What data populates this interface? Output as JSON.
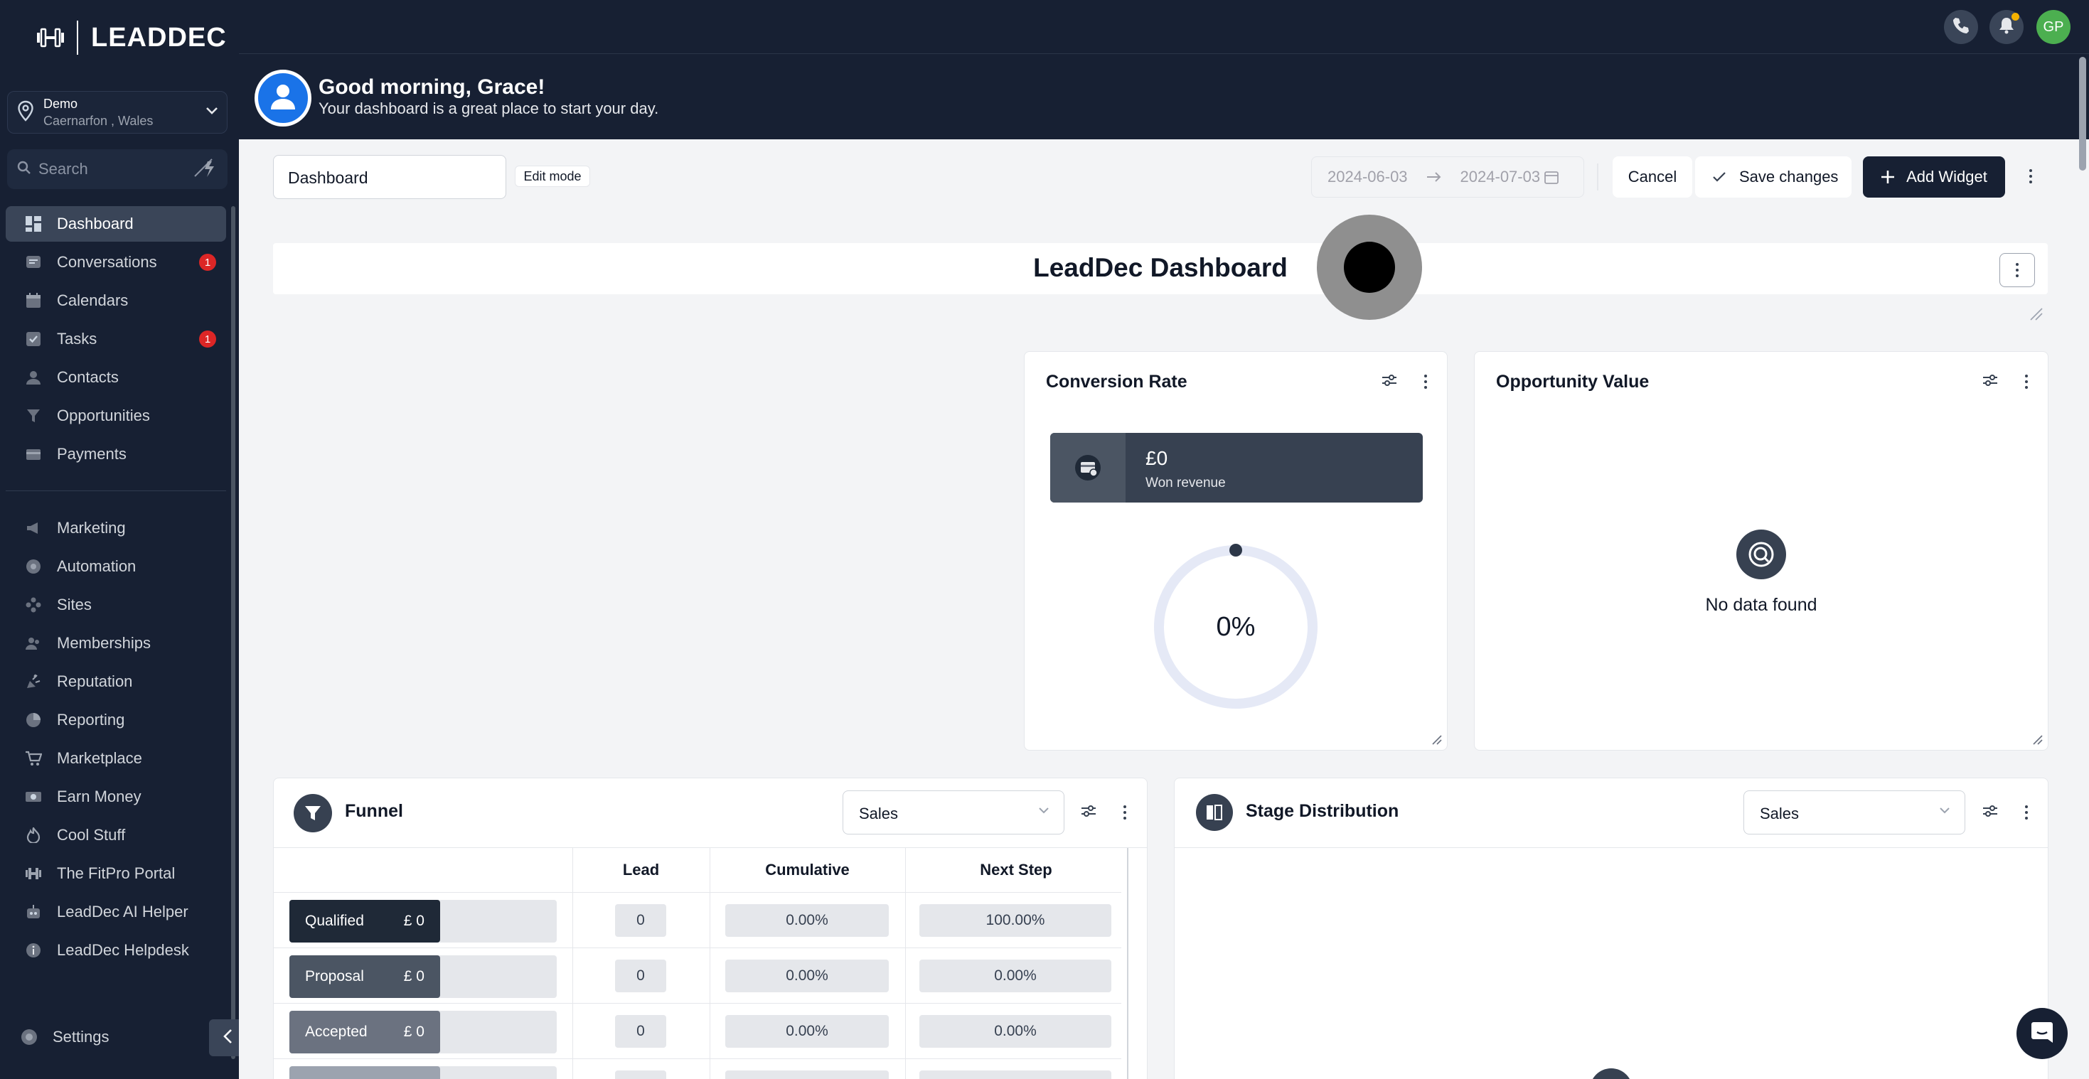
{
  "brand": {
    "name": "LEADDEC"
  },
  "location": {
    "name": "Demo",
    "sub": "Caernarfon , Wales"
  },
  "search": {
    "placeholder": "Search"
  },
  "nav": {
    "items": [
      {
        "label": "Dashboard",
        "icon": "dashboard-icon",
        "active": true
      },
      {
        "label": "Conversations",
        "icon": "chat-icon",
        "badge": "1"
      },
      {
        "label": "Calendars",
        "icon": "calendar-icon"
      },
      {
        "label": "Tasks",
        "icon": "tasks-icon",
        "badge": "1"
      },
      {
        "label": "Contacts",
        "icon": "contacts-icon"
      },
      {
        "label": "Opportunities",
        "icon": "opportunities-icon"
      },
      {
        "label": "Payments",
        "icon": "payments-icon"
      }
    ],
    "items2": [
      {
        "label": "Marketing",
        "icon": "marketing-icon"
      },
      {
        "label": "Automation",
        "icon": "automation-icon"
      },
      {
        "label": "Sites",
        "icon": "sites-icon"
      },
      {
        "label": "Memberships",
        "icon": "memberships-icon"
      },
      {
        "label": "Reputation",
        "icon": "reputation-icon"
      },
      {
        "label": "Reporting",
        "icon": "reporting-icon"
      },
      {
        "label": "Marketplace",
        "icon": "marketplace-icon"
      },
      {
        "label": "Earn Money",
        "icon": "earn-money-icon"
      },
      {
        "label": "Cool Stuff",
        "icon": "cool-stuff-icon"
      },
      {
        "label": "The FitPro Portal",
        "icon": "fitpro-icon"
      },
      {
        "label": "LeadDec AI Helper",
        "icon": "ai-helper-icon"
      },
      {
        "label": "LeadDec Helpdesk",
        "icon": "helpdesk-icon"
      }
    ],
    "settings": "Settings"
  },
  "topbar": {
    "avatar_initials": "GP"
  },
  "greeting": {
    "title": "Good morning, Grace!",
    "subtitle": "Your dashboard is a great place to start your day."
  },
  "toolbar": {
    "dashboard_name": "Dashboard",
    "edit_mode": "Edit mode",
    "date_start": "2024-06-03",
    "date_end": "2024-07-03",
    "cancel": "Cancel",
    "save": "Save changes",
    "add_widget": "Add Widget"
  },
  "dashboard": {
    "title": "LeadDec Dashboard"
  },
  "conversion": {
    "title": "Conversion Rate",
    "won_value": "£0",
    "won_label": "Won revenue",
    "percent": "0%"
  },
  "opportunity": {
    "title": "Opportunity Value",
    "empty": "No data found"
  },
  "funnel": {
    "title": "Funnel",
    "select": "Sales",
    "headers": [
      "Lead",
      "Cumulative",
      "Next Step"
    ],
    "rows": [
      {
        "stage": "Qualified",
        "amount": "£ 0",
        "lead": "0",
        "cumulative": "0.00%",
        "next": "100.00%",
        "color": "#1f2937"
      },
      {
        "stage": "Proposal",
        "amount": "£ 0",
        "lead": "0",
        "cumulative": "0.00%",
        "next": "0.00%",
        "color": "#4b5563"
      },
      {
        "stage": "Accepted",
        "amount": "£ 0",
        "lead": "0",
        "cumulative": "0.00%",
        "next": "0.00%",
        "color": "#6b7280"
      }
    ]
  },
  "stage_distribution": {
    "title": "Stage Distribution",
    "select": "Sales"
  },
  "colors": {
    "sidebar": "#172033",
    "accent": "#172033",
    "badge": "#dc2626",
    "avatar": "#4caf50"
  }
}
